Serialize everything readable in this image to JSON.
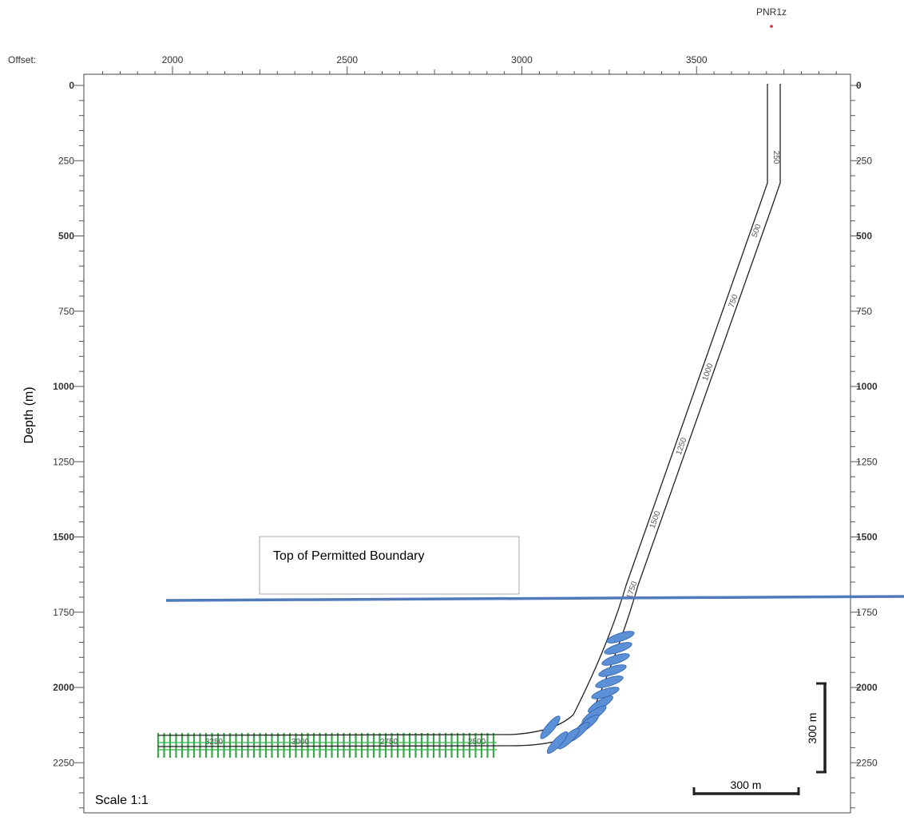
{
  "well": {
    "name": "PNR1z",
    "marker_color": "#e02020"
  },
  "offset_axis": {
    "label": "Offset:",
    "ticks": [
      "2000",
      "2500",
      "3000",
      "3500"
    ]
  },
  "depth_axis": {
    "label": "Depth (m)",
    "ticks": [
      "0",
      "250",
      "500",
      "750",
      "1000",
      "1250",
      "1500",
      "1750",
      "2000",
      "2250"
    ],
    "bold_ticks": [
      "0",
      "500",
      "1000",
      "1500",
      "2000"
    ]
  },
  "boundary": {
    "label": "Top of Permitted Boundary",
    "depth": 1710,
    "color": "#4f79b8"
  },
  "trajectory": {
    "vertical_section_end_depth": 320,
    "md_labels": [
      "250",
      "500",
      "750",
      "1000",
      "1250",
      "1500",
      "1750"
    ],
    "lateral_md_labels": [
      "3250",
      "3000",
      "2750",
      "2500"
    ],
    "lateral_depth": 2190,
    "lateral_offset_end": 1965
  },
  "frac_stages": {
    "count": 12,
    "color": "#5b8fd6",
    "vertical_color": "#3aa84a",
    "horizontal_color": "#2eb84a"
  },
  "scale": {
    "label": "Scale 1:1",
    "vertical_bar": "300 m",
    "horizontal_bar": "300 m"
  },
  "chart_data": {
    "type": "well-trajectory",
    "x_axis": {
      "label": "Offset:",
      "range": [
        1750,
        3950
      ]
    },
    "y_axis": {
      "label": "Depth (m)",
      "range": [
        0,
        2380
      ],
      "inverted": true
    },
    "trajectory_points": [
      {
        "offset": 3735,
        "depth": 0
      },
      {
        "offset": 3735,
        "depth": 320
      },
      {
        "offset": 3600,
        "depth": 620
      },
      {
        "offset": 3310,
        "depth": 1700
      },
      {
        "offset": 3205,
        "depth": 1985
      },
      {
        "offset": 3120,
        "depth": 2135
      },
      {
        "offset": 3010,
        "depth": 2185
      },
      {
        "offset": 1965,
        "depth": 2190
      }
    ],
    "boundary_depth": 1710
  }
}
